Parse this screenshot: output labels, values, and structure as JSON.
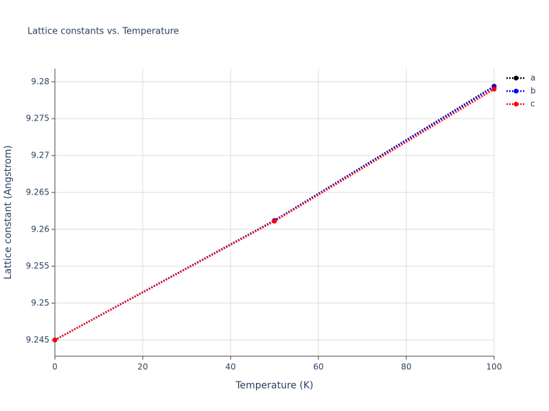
{
  "chart_data": {
    "type": "line",
    "title": "Lattice constants vs. Temperature",
    "x_label": "Temperature (K)",
    "y_label": "Lattice constant (Angstrom)",
    "x": [
      0,
      50,
      100
    ],
    "series": [
      {
        "name": "a",
        "color": "#000000",
        "values": [
          9.245,
          9.2612,
          9.2794
        ]
      },
      {
        "name": "b",
        "color": "#0000ff",
        "values": [
          9.245,
          9.2612,
          9.2793
        ]
      },
      {
        "name": "c",
        "color": "#ff0000",
        "values": [
          9.245,
          9.2611,
          9.279
        ]
      }
    ],
    "xlim": [
      0,
      100
    ],
    "xticks": [
      0,
      20,
      40,
      60,
      80,
      100
    ],
    "ylim": [
      9.2428,
      9.2818
    ],
    "yticks": [
      9.245,
      9.25,
      9.255,
      9.26,
      9.265,
      9.27,
      9.275,
      9.28
    ],
    "grid": true,
    "legend": "right"
  }
}
